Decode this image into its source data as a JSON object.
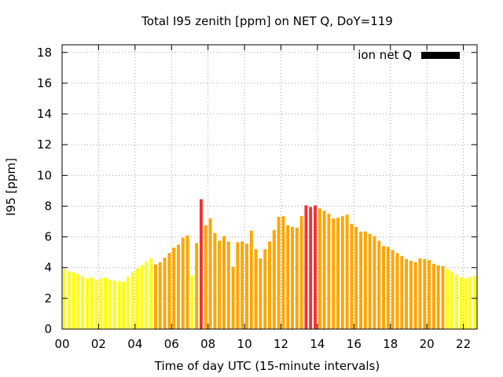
{
  "chart_data": {
    "type": "bar",
    "title": "Total I95 zenith [ppm] on NET Q, DoY=119",
    "xlabel": "Time of day UTC (15-minute intervals)",
    "ylabel": "I95 [ppm]",
    "xlim": [
      0,
      22.75
    ],
    "ylim": [
      0,
      18.5
    ],
    "xticks": [
      "00",
      "02",
      "04",
      "06",
      "08",
      "10",
      "12",
      "14",
      "16",
      "18",
      "20",
      "22"
    ],
    "yticks": [
      "0",
      "2",
      "4",
      "6",
      "8",
      "10",
      "12",
      "14",
      "16",
      "18"
    ],
    "grid": true,
    "legend_position": "top-right",
    "legend": [
      {
        "name": "ion net Q",
        "color": "#000000"
      }
    ],
    "bar_width_hours": 0.17,
    "colors": {
      "yellow": "#ffff00",
      "orange": "#ffa500",
      "red": "#ef3333"
    },
    "bars": [
      {
        "x": 0.125,
        "value": 3.9,
        "color": "yellow"
      },
      {
        "x": 0.375,
        "value": 3.75,
        "color": "yellow"
      },
      {
        "x": 0.625,
        "value": 3.7,
        "color": "yellow"
      },
      {
        "x": 0.875,
        "value": 3.6,
        "color": "yellow"
      },
      {
        "x": 1.125,
        "value": 3.45,
        "color": "yellow"
      },
      {
        "x": 1.375,
        "value": 3.3,
        "color": "yellow"
      },
      {
        "x": 1.625,
        "value": 3.35,
        "color": "yellow"
      },
      {
        "x": 1.875,
        "value": 3.2,
        "color": "yellow"
      },
      {
        "x": 2.125,
        "value": 3.3,
        "color": "yellow"
      },
      {
        "x": 2.375,
        "value": 3.35,
        "color": "yellow"
      },
      {
        "x": 2.625,
        "value": 3.2,
        "color": "yellow"
      },
      {
        "x": 2.875,
        "value": 3.15,
        "color": "yellow"
      },
      {
        "x": 3.125,
        "value": 3.1,
        "color": "yellow"
      },
      {
        "x": 3.375,
        "value": 3.1,
        "color": "yellow"
      },
      {
        "x": 3.625,
        "value": 3.4,
        "color": "yellow"
      },
      {
        "x": 3.875,
        "value": 3.7,
        "color": "yellow"
      },
      {
        "x": 4.125,
        "value": 3.95,
        "color": "yellow"
      },
      {
        "x": 4.375,
        "value": 4.15,
        "color": "yellow"
      },
      {
        "x": 4.625,
        "value": 4.4,
        "color": "yellow"
      },
      {
        "x": 4.875,
        "value": 4.6,
        "color": "yellow"
      },
      {
        "x": 5.125,
        "value": 4.2,
        "color": "orange"
      },
      {
        "x": 5.375,
        "value": 4.35,
        "color": "orange"
      },
      {
        "x": 5.625,
        "value": 4.65,
        "color": "orange"
      },
      {
        "x": 5.875,
        "value": 4.95,
        "color": "orange"
      },
      {
        "x": 6.125,
        "value": 5.3,
        "color": "orange"
      },
      {
        "x": 6.375,
        "value": 5.5,
        "color": "orange"
      },
      {
        "x": 6.625,
        "value": 5.95,
        "color": "orange"
      },
      {
        "x": 6.875,
        "value": 6.1,
        "color": "orange"
      },
      {
        "x": 7.125,
        "value": 3.5,
        "color": "yellow"
      },
      {
        "x": 7.375,
        "value": 5.6,
        "color": "orange"
      },
      {
        "x": 7.625,
        "value": 8.45,
        "color": "red"
      },
      {
        "x": 7.875,
        "value": 6.75,
        "color": "orange"
      },
      {
        "x": 8.125,
        "value": 7.2,
        "color": "orange"
      },
      {
        "x": 8.375,
        "value": 6.25,
        "color": "orange"
      },
      {
        "x": 8.625,
        "value": 5.75,
        "color": "orange"
      },
      {
        "x": 8.875,
        "value": 6.05,
        "color": "orange"
      },
      {
        "x": 9.125,
        "value": 5.7,
        "color": "orange"
      },
      {
        "x": 9.375,
        "value": 4.05,
        "color": "orange"
      },
      {
        "x": 9.625,
        "value": 5.65,
        "color": "orange"
      },
      {
        "x": 9.875,
        "value": 5.7,
        "color": "orange"
      },
      {
        "x": 10.125,
        "value": 5.55,
        "color": "orange"
      },
      {
        "x": 10.375,
        "value": 6.4,
        "color": "orange"
      },
      {
        "x": 10.625,
        "value": 5.2,
        "color": "orange"
      },
      {
        "x": 10.875,
        "value": 4.6,
        "color": "orange"
      },
      {
        "x": 11.125,
        "value": 5.2,
        "color": "orange"
      },
      {
        "x": 11.375,
        "value": 5.7,
        "color": "orange"
      },
      {
        "x": 11.625,
        "value": 6.45,
        "color": "orange"
      },
      {
        "x": 11.875,
        "value": 7.3,
        "color": "orange"
      },
      {
        "x": 12.125,
        "value": 7.35,
        "color": "orange"
      },
      {
        "x": 12.375,
        "value": 6.75,
        "color": "orange"
      },
      {
        "x": 12.625,
        "value": 6.65,
        "color": "orange"
      },
      {
        "x": 12.875,
        "value": 6.6,
        "color": "orange"
      },
      {
        "x": 13.125,
        "value": 7.35,
        "color": "orange"
      },
      {
        "x": 13.375,
        "value": 8.05,
        "color": "red"
      },
      {
        "x": 13.625,
        "value": 7.95,
        "color": "red"
      },
      {
        "x": 13.875,
        "value": 8.05,
        "color": "red"
      },
      {
        "x": 14.125,
        "value": 7.85,
        "color": "orange"
      },
      {
        "x": 14.375,
        "value": 7.7,
        "color": "orange"
      },
      {
        "x": 14.625,
        "value": 7.5,
        "color": "orange"
      },
      {
        "x": 14.875,
        "value": 7.2,
        "color": "orange"
      },
      {
        "x": 15.125,
        "value": 7.25,
        "color": "orange"
      },
      {
        "x": 15.375,
        "value": 7.35,
        "color": "orange"
      },
      {
        "x": 15.625,
        "value": 7.45,
        "color": "orange"
      },
      {
        "x": 15.875,
        "value": 6.85,
        "color": "orange"
      },
      {
        "x": 16.125,
        "value": 6.65,
        "color": "orange"
      },
      {
        "x": 16.375,
        "value": 6.35,
        "color": "orange"
      },
      {
        "x": 16.625,
        "value": 6.35,
        "color": "orange"
      },
      {
        "x": 16.875,
        "value": 6.2,
        "color": "orange"
      },
      {
        "x": 17.125,
        "value": 6.05,
        "color": "orange"
      },
      {
        "x": 17.375,
        "value": 5.75,
        "color": "orange"
      },
      {
        "x": 17.625,
        "value": 5.4,
        "color": "orange"
      },
      {
        "x": 17.875,
        "value": 5.35,
        "color": "orange"
      },
      {
        "x": 18.125,
        "value": 5.15,
        "color": "orange"
      },
      {
        "x": 18.375,
        "value": 4.95,
        "color": "orange"
      },
      {
        "x": 18.625,
        "value": 4.75,
        "color": "orange"
      },
      {
        "x": 18.875,
        "value": 4.55,
        "color": "orange"
      },
      {
        "x": 19.125,
        "value": 4.45,
        "color": "orange"
      },
      {
        "x": 19.375,
        "value": 4.35,
        "color": "orange"
      },
      {
        "x": 19.625,
        "value": 4.6,
        "color": "orange"
      },
      {
        "x": 19.875,
        "value": 4.55,
        "color": "orange"
      },
      {
        "x": 20.125,
        "value": 4.5,
        "color": "orange"
      },
      {
        "x": 20.375,
        "value": 4.25,
        "color": "orange"
      },
      {
        "x": 20.625,
        "value": 4.15,
        "color": "orange"
      },
      {
        "x": 20.875,
        "value": 4.1,
        "color": "orange"
      },
      {
        "x": 21.125,
        "value": 3.9,
        "color": "yellow"
      },
      {
        "x": 21.375,
        "value": 3.75,
        "color": "yellow"
      },
      {
        "x": 21.625,
        "value": 3.55,
        "color": "yellow"
      },
      {
        "x": 21.875,
        "value": 3.35,
        "color": "yellow"
      },
      {
        "x": 22.125,
        "value": 3.3,
        "color": "yellow"
      },
      {
        "x": 22.375,
        "value": 3.4,
        "color": "yellow"
      },
      {
        "x": 22.625,
        "value": 3.45,
        "color": "yellow"
      }
    ]
  }
}
